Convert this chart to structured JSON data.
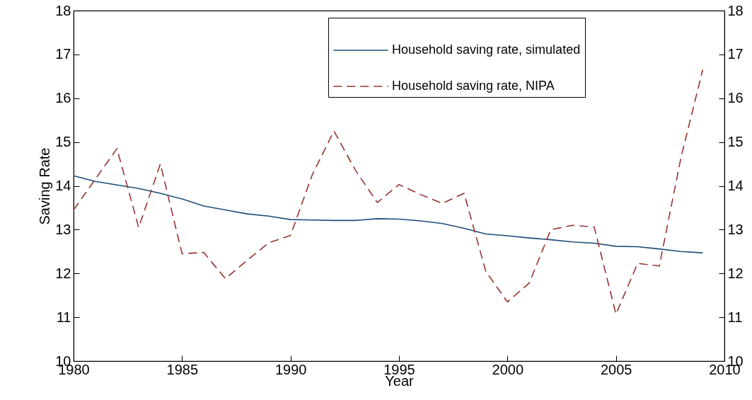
{
  "chart_data": {
    "type": "line",
    "xlabel": "Year",
    "ylabel": "Saving Rate",
    "x": [
      1980,
      1981,
      1982,
      1983,
      1984,
      1985,
      1986,
      1987,
      1988,
      1989,
      1990,
      1991,
      1992,
      1993,
      1994,
      1995,
      1996,
      1997,
      1998,
      1999,
      2000,
      2001,
      2002,
      2003,
      2004,
      2005,
      2006,
      2007,
      2008,
      2009
    ],
    "series": [
      {
        "name": "Household saving rate, simulated",
        "color": "#1f4e79",
        "line_style": "solid",
        "values": [
          14.23,
          14.1,
          14.02,
          13.94,
          13.83,
          13.7,
          13.54,
          13.45,
          13.36,
          13.31,
          13.23,
          13.22,
          13.21,
          13.21,
          13.25,
          13.24,
          13.2,
          13.14,
          13.03,
          12.9,
          12.86,
          12.81,
          12.77,
          12.72,
          12.69,
          12.62,
          12.61,
          12.56,
          12.5,
          12.47
        ]
      },
      {
        "name": "Household saving rate, NIPA",
        "color": "#993333",
        "line_style": "dashed",
        "values": [
          13.45,
          14.15,
          14.85,
          13.05,
          14.5,
          12.45,
          12.48,
          11.88,
          12.3,
          12.7,
          12.87,
          14.25,
          15.25,
          14.35,
          13.62,
          14.03,
          13.8,
          13.6,
          13.83,
          12.05,
          11.35,
          11.78,
          13.0,
          13.1,
          13.06,
          11.07,
          12.23,
          12.17,
          14.65,
          16.65
        ]
      }
    ],
    "xlim": [
      1980,
      2010
    ],
    "xticks": [
      1980,
      1985,
      1990,
      1995,
      2000,
      2005,
      2010
    ],
    "ylim": [
      10,
      18
    ],
    "yticks": [
      10,
      11,
      12,
      13,
      14,
      15,
      16,
      17,
      18
    ],
    "y2lim": [
      10,
      18
    ],
    "y2ticks": [
      10,
      11,
      12,
      13,
      14,
      15,
      16,
      17,
      18
    ],
    "grid": false,
    "legend": "top right",
    "marker": "none"
  }
}
